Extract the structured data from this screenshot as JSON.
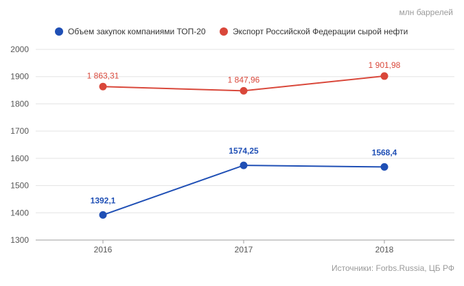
{
  "chart_data": {
    "type": "line",
    "unit_label": "млн баррелей",
    "categories": [
      "2016",
      "2017",
      "2018"
    ],
    "series": [
      {
        "name": "Объем закупок компаниями ТОП-20",
        "values": [
          1392.1,
          1574.25,
          1568.4
        ],
        "value_labels": [
          "1392,1",
          "1574,25",
          "1568,4"
        ],
        "color": "#1f4fb5"
      },
      {
        "name": "Экспорт Российской Федерации сырой нефти",
        "values": [
          1863.31,
          1847.96,
          1901.98
        ],
        "value_labels": [
          "1 863,31",
          "1 847,96",
          "1 901,98"
        ],
        "color": "#d9473a"
      }
    ],
    "ylim": [
      1300,
      2000
    ],
    "yticks": [
      1300,
      1400,
      1500,
      1600,
      1700,
      1800,
      1900,
      2000
    ],
    "grid": true,
    "legend_position": "top",
    "source": "Источники: Forbs.Russia, ЦБ РФ"
  }
}
